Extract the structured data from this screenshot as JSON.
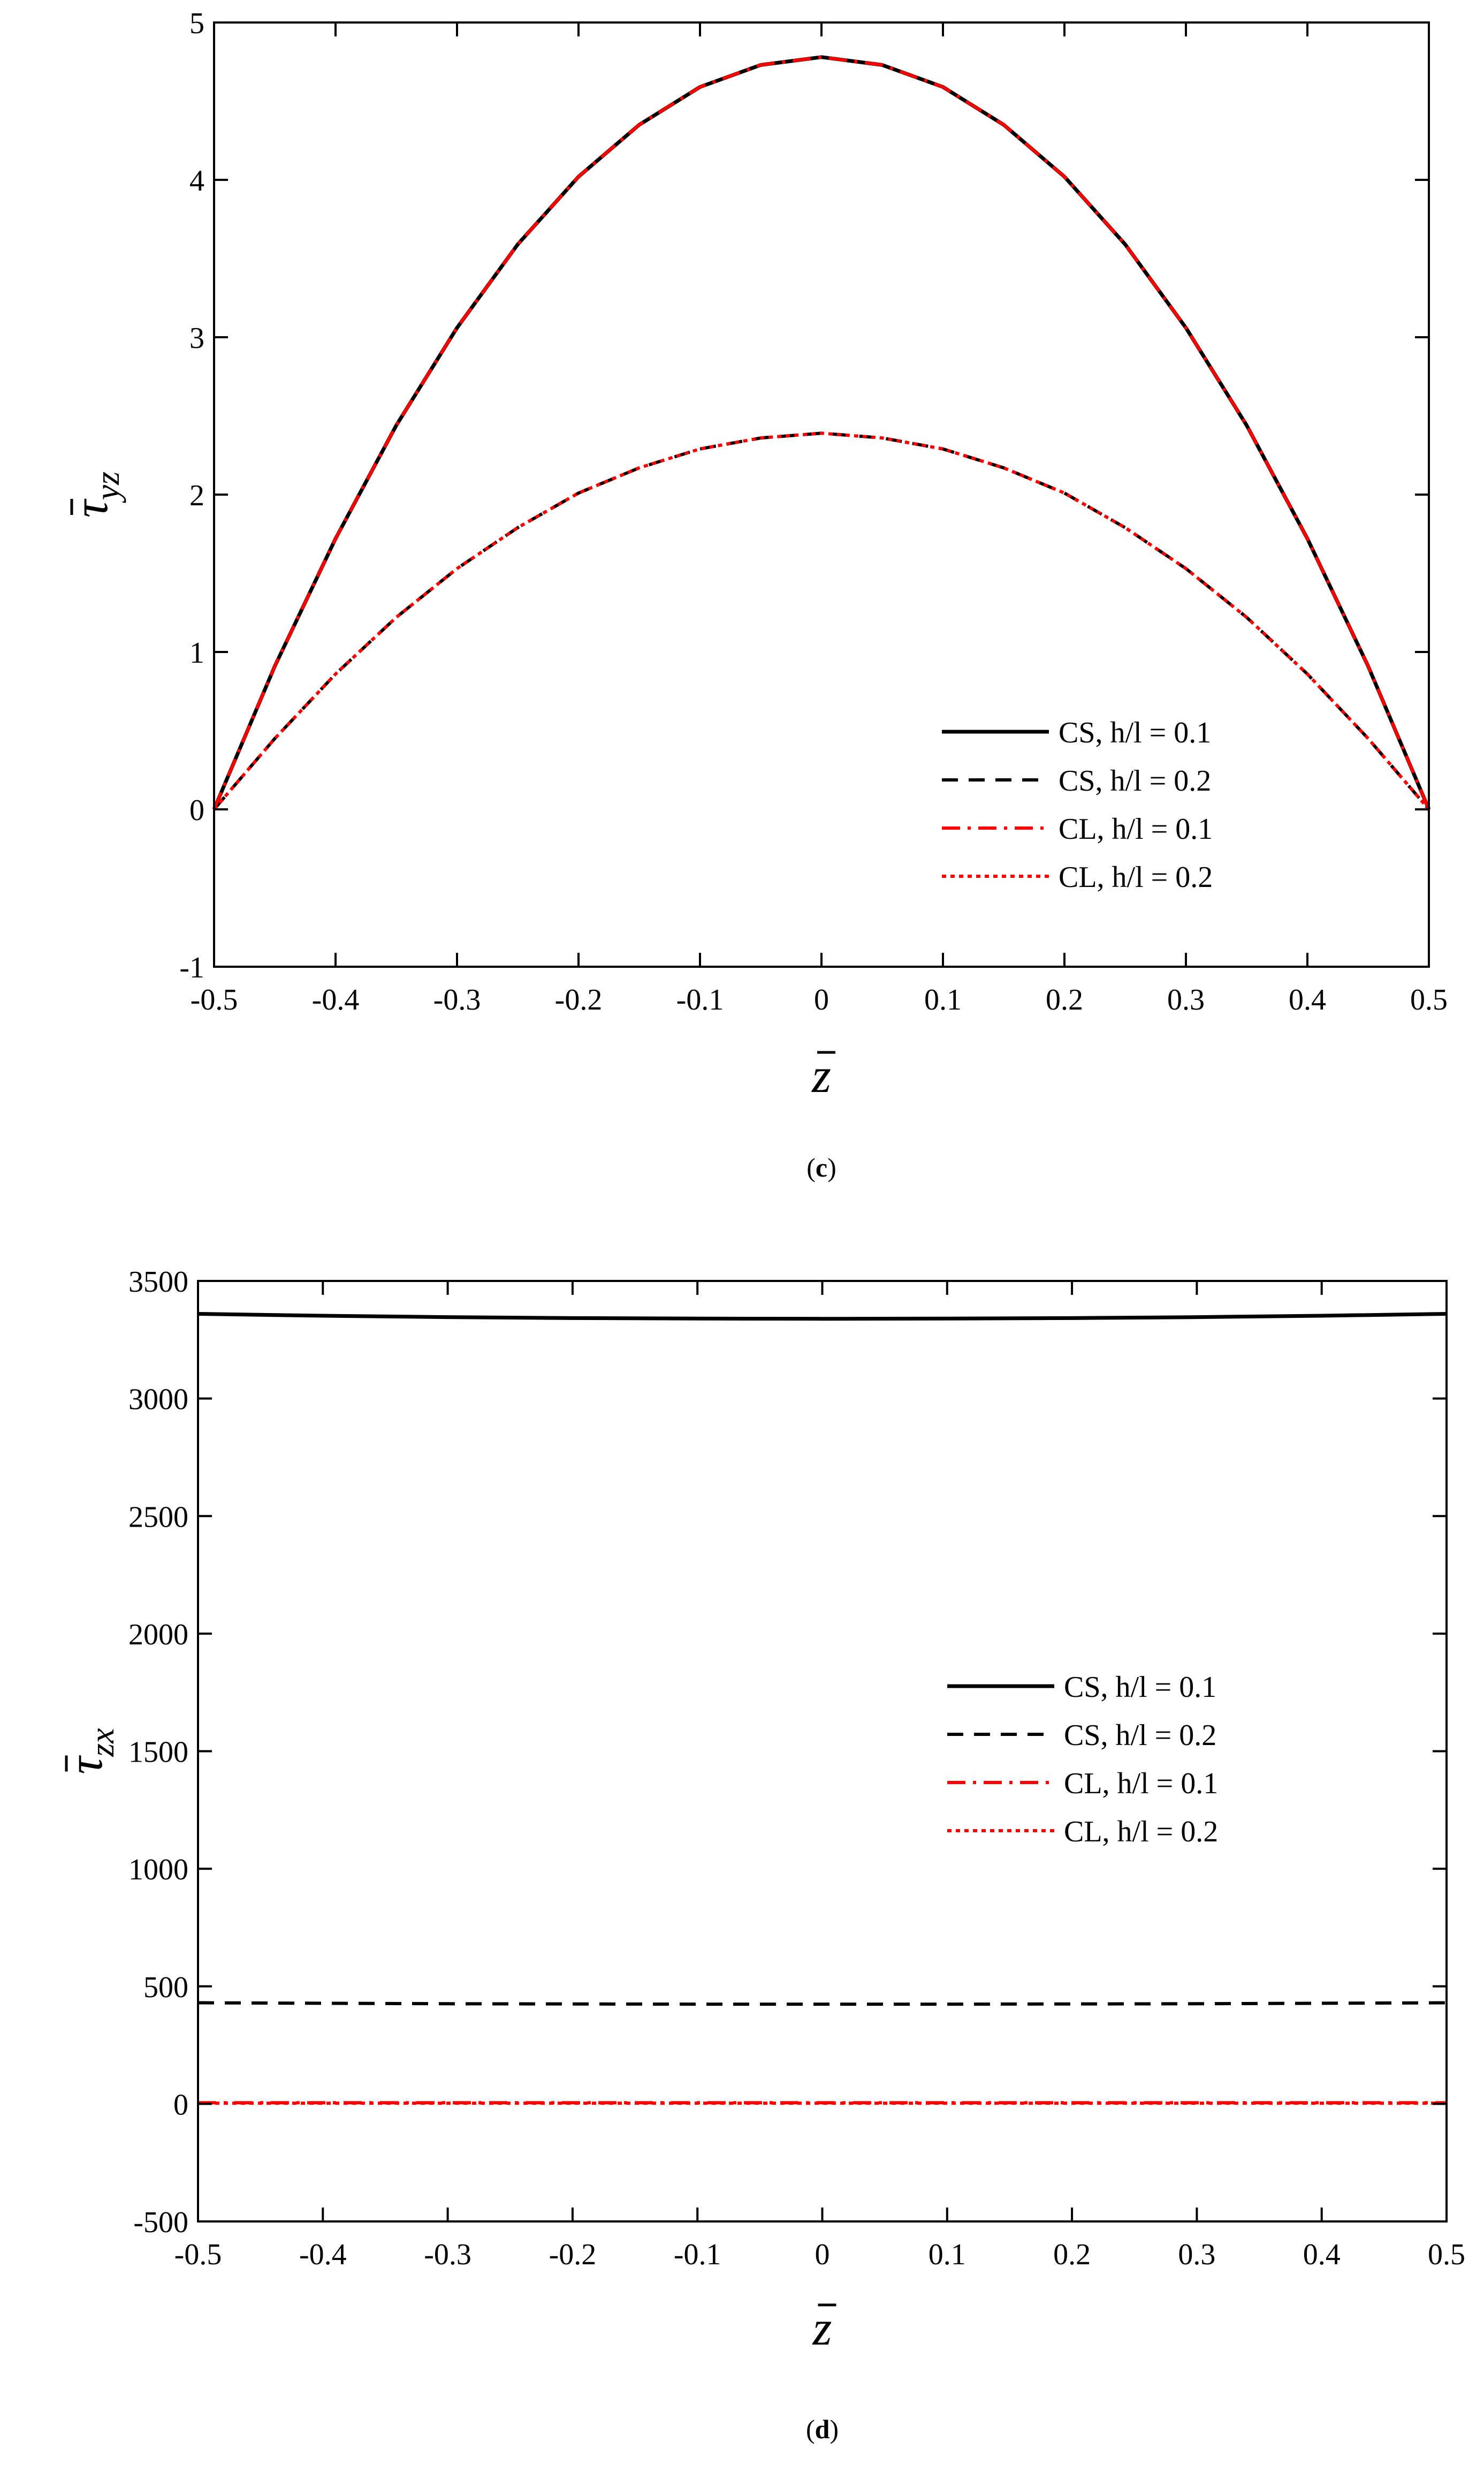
{
  "chart_data": [
    {
      "type": "line",
      "panel_label": "c",
      "ylabel": {
        "base": "τ",
        "sub": "yz"
      },
      "xlabel": "z",
      "xlim": [
        -0.5,
        0.5
      ],
      "ylim": [
        -1,
        5
      ],
      "x_ticks": [
        "-0.5",
        "-0.4",
        "-0.3",
        "-0.2",
        "-0.1",
        "0",
        "0.1",
        "0.2",
        "0.3",
        "0.4",
        "0.5"
      ],
      "y_ticks": [
        "-1",
        "0",
        "1",
        "2",
        "3",
        "4",
        "5"
      ],
      "legend_position": "bottom-right",
      "x": [
        -0.5,
        -0.45,
        -0.4,
        -0.35,
        -0.3,
        -0.25,
        -0.2,
        -0.15,
        -0.1,
        -0.05,
        0,
        0.05,
        0.1,
        0.15,
        0.2,
        0.25,
        0.3,
        0.35,
        0.4,
        0.45,
        0.5
      ],
      "series": [
        {
          "name": "CS, h/l = 0.1",
          "color": "#000000",
          "dash": "solid",
          "values": [
            0,
            0.91,
            1.72,
            2.44,
            3.06,
            3.59,
            4.02,
            4.35,
            4.59,
            4.73,
            4.78,
            4.73,
            4.59,
            4.35,
            4.02,
            3.59,
            3.06,
            2.44,
            1.72,
            0.91,
            0
          ]
        },
        {
          "name": "CS, h/l = 0.2",
          "color": "#000000",
          "dash": "dashed",
          "values": [
            0,
            0.45,
            0.86,
            1.22,
            1.53,
            1.79,
            2.01,
            2.17,
            2.29,
            2.36,
            2.39,
            2.36,
            2.29,
            2.17,
            2.01,
            1.79,
            1.53,
            1.22,
            0.86,
            0.45,
            0
          ]
        },
        {
          "name": "CL, h/l = 0.1",
          "color": "#ff0000",
          "dash": "dashdot",
          "values": [
            0,
            0.91,
            1.72,
            2.44,
            3.06,
            3.59,
            4.02,
            4.35,
            4.59,
            4.73,
            4.78,
            4.73,
            4.59,
            4.35,
            4.02,
            3.59,
            3.06,
            2.44,
            1.72,
            0.91,
            0
          ]
        },
        {
          "name": "CL, h/l = 0.2",
          "color": "#ff0000",
          "dash": "dotted",
          "values": [
            0,
            0.45,
            0.86,
            1.22,
            1.53,
            1.79,
            2.01,
            2.17,
            2.29,
            2.36,
            2.39,
            2.36,
            2.29,
            2.17,
            2.01,
            1.79,
            1.53,
            1.22,
            0.86,
            0.45,
            0
          ]
        }
      ]
    },
    {
      "type": "line",
      "panel_label": "d",
      "ylabel": {
        "base": "τ",
        "sub": "zx"
      },
      "xlabel": "z",
      "xlim": [
        -0.5,
        0.5
      ],
      "ylim": [
        -500,
        3500
      ],
      "x_ticks": [
        "-0.5",
        "-0.4",
        "-0.3",
        "-0.2",
        "-0.1",
        "0",
        "0.1",
        "0.2",
        "0.3",
        "0.4",
        "0.5"
      ],
      "y_ticks": [
        "-500",
        "0",
        "500",
        "1000",
        "1500",
        "2000",
        "2500",
        "3000",
        "3500"
      ],
      "legend_position": "right",
      "x": [
        -0.5,
        -0.4,
        -0.3,
        -0.2,
        -0.1,
        0,
        0.1,
        0.2,
        0.3,
        0.4,
        0.5
      ],
      "series": [
        {
          "name": "CS, h/l = 0.1",
          "color": "#000000",
          "dash": "solid",
          "values": [
            3360,
            3352,
            3346,
            3342,
            3340,
            3339,
            3340,
            3342,
            3346,
            3352,
            3360
          ]
        },
        {
          "name": "CS, h/l = 0.2",
          "color": "#000000",
          "dash": "dashed",
          "values": [
            430,
            428,
            426,
            425,
            424,
            424,
            424,
            425,
            426,
            428,
            430
          ]
        },
        {
          "name": "CL, h/l = 0.1",
          "color": "#ff0000",
          "dash": "dashdot",
          "values": [
            5,
            5,
            5,
            5,
            5,
            5,
            5,
            5,
            5,
            5,
            5
          ]
        },
        {
          "name": "CL, h/l = 0.2",
          "color": "#ff0000",
          "dash": "dotted",
          "values": [
            3,
            3,
            3,
            3,
            3,
            3,
            3,
            3,
            3,
            3,
            3
          ]
        }
      ]
    }
  ]
}
